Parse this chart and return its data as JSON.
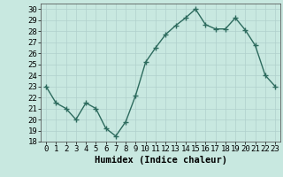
{
  "x": [
    0,
    1,
    2,
    3,
    4,
    5,
    6,
    7,
    8,
    9,
    10,
    11,
    12,
    13,
    14,
    15,
    16,
    17,
    18,
    19,
    20,
    21,
    22,
    23
  ],
  "y": [
    23,
    21.5,
    21,
    20,
    21.5,
    21,
    19.2,
    18.5,
    19.8,
    22.2,
    25.2,
    26.5,
    27.7,
    28.5,
    29.2,
    30,
    28.6,
    28.2,
    28.2,
    29.2,
    28.1,
    26.7,
    24.0,
    23.0
  ],
  "line_color": "#2d6b5e",
  "marker": "+",
  "bg_color": "#c8e8e0",
  "grid_color": "#b0d0cc",
  "xlabel": "Humidex (Indice chaleur)",
  "ylim": [
    18,
    30.5
  ],
  "xlim": [
    -0.5,
    23.5
  ],
  "yticks": [
    18,
    19,
    20,
    21,
    22,
    23,
    24,
    25,
    26,
    27,
    28,
    29,
    30
  ],
  "xticks": [
    0,
    1,
    2,
    3,
    4,
    5,
    6,
    7,
    8,
    9,
    10,
    11,
    12,
    13,
    14,
    15,
    16,
    17,
    18,
    19,
    20,
    21,
    22,
    23
  ],
  "tick_fontsize": 6.5,
  "xlabel_fontsize": 7.5,
  "line_width": 1.0,
  "marker_size": 4,
  "marker_edge_width": 1.0
}
